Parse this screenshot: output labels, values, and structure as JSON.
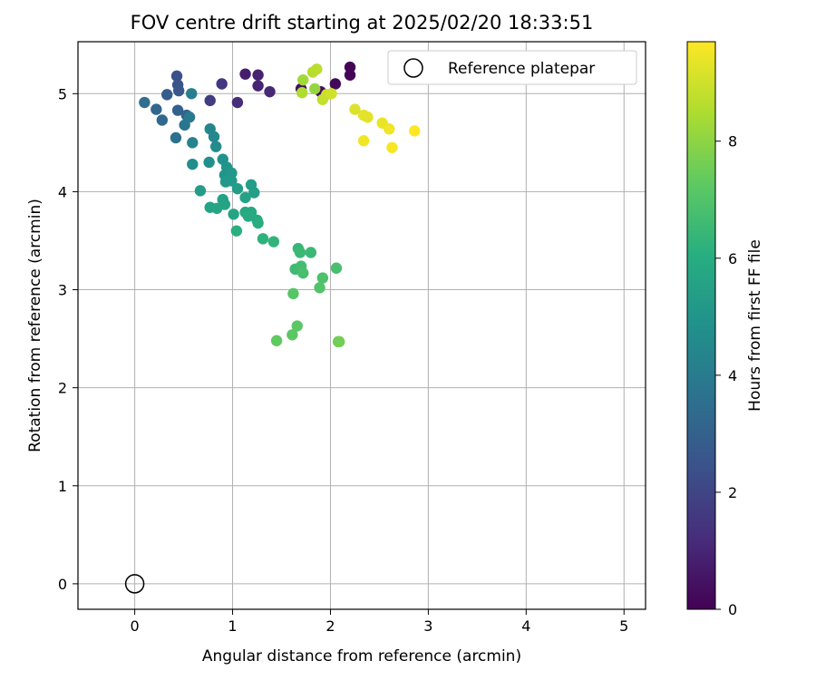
{
  "chart_data": {
    "type": "scatter",
    "title": "FOV centre drift starting at 2025/02/20 18:33:51",
    "xlabel": "Angular distance from reference (arcmin)",
    "ylabel": "Rotation from reference (arcmin)",
    "xlim": [
      -0.58,
      5.22
    ],
    "ylim": [
      -0.26,
      5.53
    ],
    "xticks": [
      "0",
      "1",
      "2",
      "3",
      "4",
      "5"
    ],
    "yticks": [
      "0",
      "1",
      "2",
      "3",
      "4",
      "5"
    ],
    "grid": true,
    "legend": {
      "placement": "top-right",
      "entries": [
        "Reference platepar"
      ]
    },
    "reference_point": {
      "x": 0,
      "y": 0
    },
    "colorbar": {
      "label": "Hours from first FF file",
      "range": [
        0,
        9.7
      ],
      "ticks": [
        "0",
        "2",
        "4",
        "6",
        "8"
      ],
      "colormap": "viridis"
    },
    "points": [
      {
        "x": 2.2,
        "y": 5.27,
        "c": 0.1
      },
      {
        "x": 2.2,
        "y": 5.19,
        "c": 0.1
      },
      {
        "x": 2.05,
        "y": 5.1,
        "c": 0.2
      },
      {
        "x": 1.9,
        "y": 5.02,
        "c": 0.3
      },
      {
        "x": 1.7,
        "y": 5.05,
        "c": 0.4
      },
      {
        "x": 1.13,
        "y": 5.2,
        "c": 0.8
      },
      {
        "x": 1.26,
        "y": 5.19,
        "c": 0.9
      },
      {
        "x": 1.26,
        "y": 5.08,
        "c": 1.0
      },
      {
        "x": 1.38,
        "y": 5.02,
        "c": 1.1
      },
      {
        "x": 1.05,
        "y": 4.91,
        "c": 1.2
      },
      {
        "x": 0.89,
        "y": 5.1,
        "c": 1.5
      },
      {
        "x": 0.77,
        "y": 4.93,
        "c": 1.7
      },
      {
        "x": 0.43,
        "y": 5.18,
        "c": 2.4
      },
      {
        "x": 0.44,
        "y": 5.09,
        "c": 2.5
      },
      {
        "x": 0.45,
        "y": 5.03,
        "c": 2.6
      },
      {
        "x": 0.33,
        "y": 4.99,
        "c": 2.8
      },
      {
        "x": 0.44,
        "y": 4.83,
        "c": 3.0
      },
      {
        "x": 0.53,
        "y": 4.78,
        "c": 3.1
      },
      {
        "x": 0.22,
        "y": 4.84,
        "c": 3.2
      },
      {
        "x": 0.28,
        "y": 4.73,
        "c": 3.3
      },
      {
        "x": 0.1,
        "y": 4.91,
        "c": 3.5
      },
      {
        "x": 0.42,
        "y": 4.55,
        "c": 3.6
      },
      {
        "x": 0.51,
        "y": 4.68,
        "c": 3.8
      },
      {
        "x": 0.56,
        "y": 4.76,
        "c": 3.9
      },
      {
        "x": 0.58,
        "y": 5.0,
        "c": 4.1
      },
      {
        "x": 0.59,
        "y": 4.5,
        "c": 4.3
      },
      {
        "x": 0.77,
        "y": 4.64,
        "c": 4.4
      },
      {
        "x": 0.81,
        "y": 4.56,
        "c": 4.5
      },
      {
        "x": 0.83,
        "y": 4.46,
        "c": 4.6
      },
      {
        "x": 0.59,
        "y": 4.28,
        "c": 4.7
      },
      {
        "x": 0.76,
        "y": 4.3,
        "c": 4.8
      },
      {
        "x": 0.9,
        "y": 4.33,
        "c": 4.9
      },
      {
        "x": 0.94,
        "y": 4.25,
        "c": 5.0
      },
      {
        "x": 0.92,
        "y": 4.17,
        "c": 5.0
      },
      {
        "x": 0.99,
        "y": 4.19,
        "c": 5.1
      },
      {
        "x": 0.93,
        "y": 4.1,
        "c": 5.2
      },
      {
        "x": 0.99,
        "y": 4.11,
        "c": 5.2
      },
      {
        "x": 1.05,
        "y": 4.03,
        "c": 5.3
      },
      {
        "x": 0.67,
        "y": 4.01,
        "c": 5.3
      },
      {
        "x": 1.19,
        "y": 4.07,
        "c": 5.4
      },
      {
        "x": 1.22,
        "y": 3.99,
        "c": 5.4
      },
      {
        "x": 1.13,
        "y": 3.94,
        "c": 5.5
      },
      {
        "x": 0.9,
        "y": 3.92,
        "c": 5.5
      },
      {
        "x": 0.92,
        "y": 3.87,
        "c": 5.6
      },
      {
        "x": 0.77,
        "y": 3.84,
        "c": 5.6
      },
      {
        "x": 0.84,
        "y": 3.83,
        "c": 5.7
      },
      {
        "x": 1.01,
        "y": 3.77,
        "c": 5.7
      },
      {
        "x": 1.13,
        "y": 3.79,
        "c": 5.8
      },
      {
        "x": 1.19,
        "y": 3.79,
        "c": 5.8
      },
      {
        "x": 1.16,
        "y": 3.75,
        "c": 5.9
      },
      {
        "x": 1.25,
        "y": 3.71,
        "c": 5.9
      },
      {
        "x": 1.26,
        "y": 3.68,
        "c": 6.0
      },
      {
        "x": 1.04,
        "y": 3.6,
        "c": 6.1
      },
      {
        "x": 1.31,
        "y": 3.52,
        "c": 6.2
      },
      {
        "x": 1.42,
        "y": 3.49,
        "c": 6.3
      },
      {
        "x": 1.67,
        "y": 3.42,
        "c": 6.4
      },
      {
        "x": 1.69,
        "y": 3.38,
        "c": 6.5
      },
      {
        "x": 1.8,
        "y": 3.38,
        "c": 6.5
      },
      {
        "x": 1.64,
        "y": 3.21,
        "c": 6.6
      },
      {
        "x": 1.7,
        "y": 3.24,
        "c": 6.7
      },
      {
        "x": 1.72,
        "y": 3.17,
        "c": 6.8
      },
      {
        "x": 2.06,
        "y": 3.22,
        "c": 6.8
      },
      {
        "x": 1.92,
        "y": 3.12,
        "c": 6.9
      },
      {
        "x": 1.89,
        "y": 3.02,
        "c": 7.0
      },
      {
        "x": 1.62,
        "y": 2.96,
        "c": 7.1
      },
      {
        "x": 1.66,
        "y": 2.63,
        "c": 7.2
      },
      {
        "x": 1.61,
        "y": 2.54,
        "c": 7.2
      },
      {
        "x": 1.45,
        "y": 2.48,
        "c": 7.3
      },
      {
        "x": 2.08,
        "y": 2.47,
        "c": 7.5
      },
      {
        "x": 2.09,
        "y": 2.47,
        "c": 7.6
      },
      {
        "x": 1.84,
        "y": 5.05,
        "c": 8.1
      },
      {
        "x": 1.72,
        "y": 5.14,
        "c": 8.3
      },
      {
        "x": 1.71,
        "y": 5.01,
        "c": 8.5
      },
      {
        "x": 1.82,
        "y": 5.22,
        "c": 8.6
      },
      {
        "x": 1.86,
        "y": 5.25,
        "c": 8.7
      },
      {
        "x": 1.92,
        "y": 4.94,
        "c": 8.8
      },
      {
        "x": 1.96,
        "y": 4.99,
        "c": 8.9
      },
      {
        "x": 2.01,
        "y": 5.0,
        "c": 9.0
      },
      {
        "x": 2.25,
        "y": 4.84,
        "c": 9.2
      },
      {
        "x": 2.34,
        "y": 4.78,
        "c": 9.3
      },
      {
        "x": 2.38,
        "y": 4.76,
        "c": 9.3
      },
      {
        "x": 2.53,
        "y": 4.7,
        "c": 9.4
      },
      {
        "x": 2.6,
        "y": 4.64,
        "c": 9.5
      },
      {
        "x": 2.34,
        "y": 4.52,
        "c": 9.5
      },
      {
        "x": 2.63,
        "y": 4.45,
        "c": 9.6
      },
      {
        "x": 2.86,
        "y": 4.62,
        "c": 9.7
      }
    ]
  }
}
